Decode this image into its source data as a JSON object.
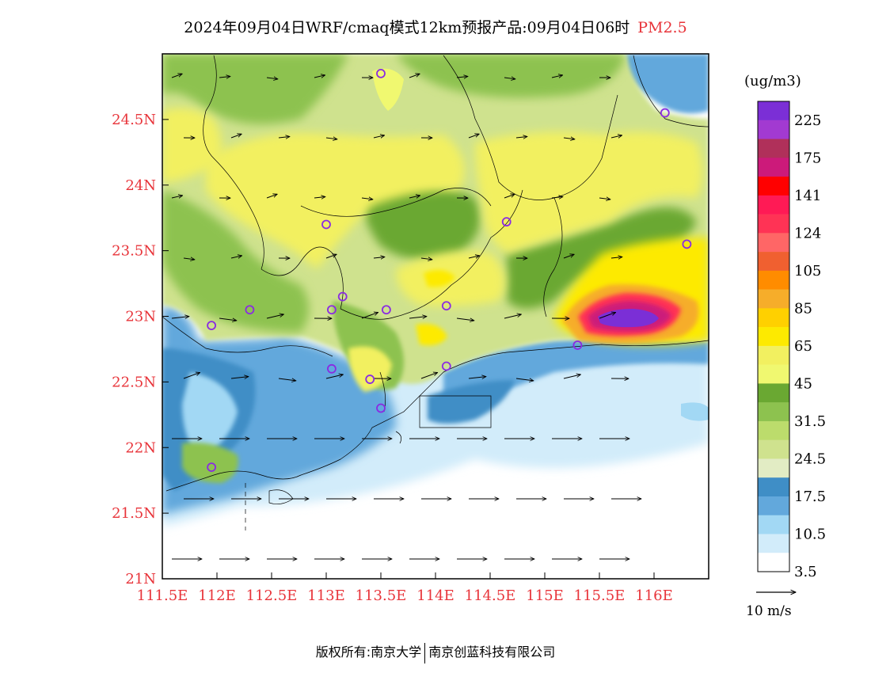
{
  "header": {
    "title": "2024年09月04日WRF/cmaq模式12km预报产品:09月04日06时",
    "variable": "PM2.5"
  },
  "colorbar": {
    "unit": "(ug/m3)",
    "levels": [
      "225",
      "175",
      "141",
      "124",
      "105",
      "85",
      "65",
      "45",
      "31.5",
      "24.5",
      "17.5",
      "10.5",
      "3.5"
    ],
    "colors": [
      "#7b2fd6",
      "#a23ad1",
      "#b0305a",
      "#cc1a7a",
      "#ff0000",
      "#ff1a55",
      "#ff3355",
      "#ff6666",
      "#f06030",
      "#ff8c00",
      "#f6ad2a",
      "#ffd000",
      "#fdea00",
      "#f2f060",
      "#f0f870",
      "#6aa832",
      "#8dc24f",
      "#bcdc6c",
      "#cfe28e",
      "#e2ecc4",
      "#3f8ec6",
      "#62a8dc",
      "#a2d8f4",
      "#d2ecfa",
      "#ffffff"
    ]
  },
  "axes": {
    "lat_labels": [
      "24.5N",
      "24N",
      "23.5N",
      "23N",
      "22.5N",
      "22N",
      "21.5N",
      "21N"
    ],
    "lon_labels": [
      "111.5E",
      "112E",
      "112.5E",
      "113E",
      "113.5E",
      "114E",
      "114.5E",
      "115E",
      "115.5E",
      "116E"
    ]
  },
  "wind": {
    "reference_label": "10 m/s"
  },
  "footer": {
    "left": "版权所有:南京大学",
    "right": "南京创蓝科技有限公司"
  },
  "map_data": {
    "lat_range": [
      21,
      25
    ],
    "lon_range": [
      111.5,
      116.5
    ],
    "stations": [
      [
        113.5,
        24.85
      ],
      [
        116.1,
        24.55
      ],
      [
        113.0,
        23.7
      ],
      [
        114.65,
        23.72
      ],
      [
        116.3,
        23.55
      ],
      [
        112.3,
        23.05
      ],
      [
        113.05,
        23.05
      ],
      [
        113.15,
        23.15
      ],
      [
        113.55,
        23.05
      ],
      [
        114.1,
        23.08
      ],
      [
        111.95,
        22.93
      ],
      [
        113.05,
        22.6
      ],
      [
        113.4,
        22.52
      ],
      [
        114.1,
        22.62
      ],
      [
        113.5,
        22.3
      ],
      [
        115.3,
        22.78
      ],
      [
        111.95,
        21.85
      ]
    ]
  }
}
